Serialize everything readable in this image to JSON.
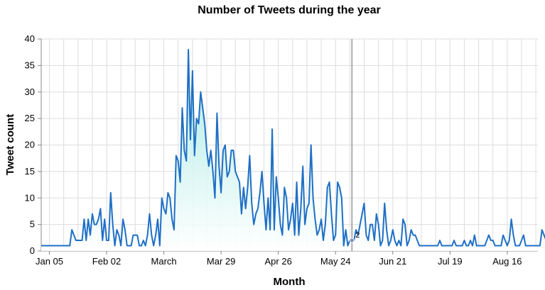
{
  "chart_data": {
    "type": "area",
    "title": "Number of Tweets during the year",
    "xlabel": "Month",
    "ylabel": "Tweet count",
    "ylim": [
      0,
      40
    ],
    "y_ticks": [
      0,
      5,
      10,
      15,
      20,
      25,
      30,
      35,
      40
    ],
    "x_range": [
      "Jan 01",
      "Aug 31"
    ],
    "x_ticks": [
      {
        "label": "Jan 05",
        "date": "Jan 05"
      },
      {
        "label": "Feb 02",
        "date": "Feb 02"
      },
      {
        "label": "March",
        "date": "Mar 01"
      },
      {
        "label": "Mar 29",
        "date": "Mar 29"
      },
      {
        "label": "Apr 26",
        "date": "Apr 26"
      },
      {
        "label": "May 24",
        "date": "May 24"
      },
      {
        "label": "Jun 21",
        "date": "Jun 21"
      },
      {
        "label": "Jul 19",
        "date": "Jul 19"
      },
      {
        "label": "Aug 16",
        "date": "Aug 16"
      }
    ],
    "grid": true,
    "colors": {
      "line": "#1f6fc5",
      "fill_top": "#9fe8e0",
      "fill_bottom": "#ffffff",
      "rule": "#666666"
    },
    "rule": {
      "date": "Jun 01",
      "value": 2,
      "label": "2"
    },
    "series": [
      {
        "values": [
          1,
          1,
          1,
          1,
          1,
          1,
          1,
          1,
          1,
          1,
          1,
          1,
          1,
          1,
          1,
          4,
          3,
          2,
          2,
          2,
          2,
          6,
          2,
          6,
          3,
          7,
          5,
          5,
          6,
          8,
          2,
          6,
          2,
          2,
          11,
          5,
          1,
          4,
          3,
          1,
          6,
          4,
          1,
          1,
          1,
          3,
          3,
          3,
          1,
          1,
          2,
          1,
          3,
          7,
          3,
          1,
          3,
          6,
          1,
          10,
          8,
          7,
          11,
          10,
          6,
          4,
          18,
          17,
          13,
          27,
          19,
          17,
          38,
          21,
          34,
          18,
          25,
          24,
          30,
          27,
          24,
          19,
          16,
          19,
          15,
          10,
          26,
          16,
          11,
          19,
          20,
          14,
          15,
          19,
          19,
          15,
          14,
          13,
          7,
          12,
          8,
          12,
          18,
          9,
          5,
          7,
          8,
          11,
          15,
          9,
          4,
          10,
          4,
          23,
          4,
          14,
          10,
          5,
          3,
          12,
          10,
          4,
          6,
          9,
          3,
          13,
          3,
          8,
          16,
          5,
          8,
          9,
          20,
          10,
          6,
          3,
          4,
          6,
          2,
          5,
          12,
          13,
          7,
          2,
          3,
          13,
          12,
          10,
          1,
          4,
          1,
          2,
          2,
          2,
          4,
          3,
          5,
          7,
          9,
          3,
          2,
          5,
          5,
          2,
          7,
          5,
          1,
          2,
          9,
          4,
          1,
          2,
          4,
          2,
          1,
          2,
          1,
          6,
          5,
          1,
          2,
          4,
          3,
          3,
          2,
          1,
          1,
          1,
          1,
          1,
          1,
          1,
          1,
          1,
          1,
          2,
          1,
          1,
          1,
          1,
          1,
          1,
          2,
          1,
          1,
          1,
          1,
          2,
          1,
          1,
          2,
          1,
          3,
          1,
          1,
          1,
          1,
          1,
          2,
          3,
          2,
          2,
          1,
          1,
          1,
          1,
          3,
          2,
          1,
          2,
          6,
          3,
          1,
          1,
          1,
          2,
          3,
          1,
          1,
          1,
          1,
          1,
          1,
          1,
          1,
          4,
          3,
          2,
          1,
          2
        ]
      }
    ]
  }
}
